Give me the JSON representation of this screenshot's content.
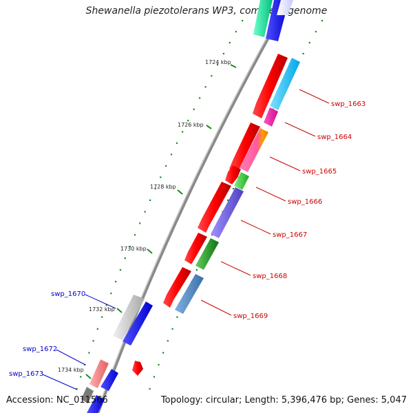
{
  "title": "Shewanella piezotolerans WP3, complete genome",
  "accession": "Accession: NC_011566",
  "topology": "Topology: circular; Length: 5,396,476 bp; Genes: 5,047",
  "kbp_ticks": [
    {
      "label": "1724 kbp"
    },
    {
      "label": "1726 kbp"
    },
    {
      "label": "1728 kbp"
    },
    {
      "label": "1730 kbp"
    },
    {
      "label": "1732 kbp"
    },
    {
      "label": "1734 kbp"
    }
  ],
  "gene_labels": [
    {
      "label": "swp_1663",
      "color": "#cc0000"
    },
    {
      "label": "swp_1664",
      "color": "#cc0000"
    },
    {
      "label": "swp_1665",
      "color": "#cc0000"
    },
    {
      "label": "swp_1666",
      "color": "#cc0000"
    },
    {
      "label": "swp_1667",
      "color": "#cc0000"
    },
    {
      "label": "swp_1668",
      "color": "#cc0000"
    },
    {
      "label": "swp_1669",
      "color": "#cc0000"
    },
    {
      "label": "swp_1670",
      "color": "#0000cc"
    },
    {
      "label": "swp_1672",
      "color": "#0000cc"
    },
    {
      "label": "swp_1673",
      "color": "#0000cc"
    }
  ],
  "colors": {
    "backbone": "#888888",
    "tick_green": "#1a8a1a",
    "red_gene": "#ff0000",
    "blue_gene": "#0000ff"
  }
}
